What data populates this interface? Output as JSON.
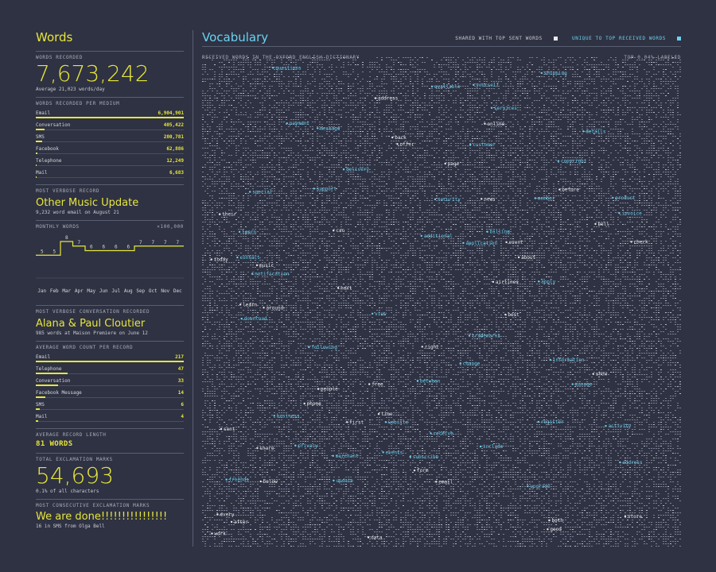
{
  "words": {
    "title": "Words",
    "recorded_label": "WORDS RECORDED",
    "recorded_value": "7,673,242",
    "recorded_sub": "Average 21,023 words/day",
    "per_medium_label": "WORDS RECORDED PER MEDIUM",
    "per_medium": [
      {
        "name": "Email",
        "value": "6,904,901",
        "fraction": 1.0
      },
      {
        "name": "Conversation",
        "value": "405,422",
        "fraction": 0.059
      },
      {
        "name": "SMS",
        "value": "280,781",
        "fraction": 0.041
      },
      {
        "name": "Facebook",
        "value": "62,886",
        "fraction": 0.009
      },
      {
        "name": "Telephone",
        "value": "12,249",
        "fraction": 0.002
      },
      {
        "name": "Mail",
        "value": "6,683",
        "fraction": 0.001
      }
    ],
    "verbose_label": "MOST VERBOSE RECORD",
    "verbose_title": "Other Music Update",
    "verbose_sub": "9,232 word email on August 21",
    "monthly_label": "MONTHLY WORDS",
    "monthly_unit": "×100,000",
    "verbose_conv_label": "MOST VERBOSE CONVERSATION RECORDED",
    "verbose_conv_title": "Alana & Paul Cloutier",
    "verbose_conv_sub": "985 words at Maison Premiere on June 12",
    "avg_count_label": "AVERAGE WORD COUNT PER RECORD",
    "avg_count": [
      {
        "name": "Email",
        "value": "217",
        "fraction": 1.0
      },
      {
        "name": "Telephone",
        "value": "47",
        "fraction": 0.217
      },
      {
        "name": "Conversation",
        "value": "33",
        "fraction": 0.152
      },
      {
        "name": "Facebook Message",
        "value": "14",
        "fraction": 0.065
      },
      {
        "name": "SMS",
        "value": "6",
        "fraction": 0.028
      },
      {
        "name": "Mail",
        "value": "4",
        "fraction": 0.018
      }
    ],
    "avg_length_label": "AVERAGE RECORD LENGTH",
    "avg_length_value": "81 WORDS",
    "exclaim_label": "TOTAL EXCLAMATION MARKS",
    "exclaim_value": "54,693",
    "exclaim_sub": "0.1% of all characters",
    "consec_label": "MOST CONSECUTIVE EXCLAMATION MARKS",
    "consec_value": "We are done!!!!!!!!!!!!!!!!",
    "consec_sub": "16 in SMS from Olga Bell"
  },
  "chart_data": {
    "type": "line",
    "categories": [
      "Jan",
      "Feb",
      "Mar",
      "Apr",
      "May",
      "Jun",
      "Jul",
      "Aug",
      "Sep",
      "Oct",
      "Nov",
      "Dec"
    ],
    "values": [
      5,
      5,
      8,
      7,
      6,
      6,
      6,
      6,
      7,
      7,
      7,
      7
    ],
    "title": "MONTHLY WORDS",
    "ylabel": "×100,000",
    "color": "#e6e63c"
  },
  "vocabulary": {
    "title": "Vocabulary",
    "legend_shared": "SHARED WITH TOP SENT WORDS",
    "legend_unique": "UNIQUE TO TOP RECEIVED WORDS",
    "shared_color": "#e8e9ee",
    "unique_color": "#6ad2f2",
    "grid_label": "RECEIVED WORDS IN THE OXFORD ENGLISH DICTIONARY",
    "labeled_note": "TOP 0.04% LABELED",
    "words_white": [
      "after",
      "airlines",
      "learn",
      "around",
      "bell",
      "before",
      "below",
      "check",
      "can",
      "show",
      "time",
      "form",
      "data",
      "share",
      "both",
      "free",
      "next",
      "page",
      "good",
      "email",
      "work",
      "right",
      "people",
      "offer",
      "phone",
      "address",
      "every",
      "best",
      "sent",
      "news",
      "music",
      "event",
      "online",
      "about",
      "their",
      "today",
      "store",
      "back",
      "first"
    ],
    "words_cyan": [
      "additional",
      "address",
      "activity",
      "application",
      "available",
      "apply",
      "between",
      "billing",
      "business",
      "change",
      "contact",
      "copyright",
      "customer",
      "delivery",
      "details",
      "download",
      "events",
      "following",
      "friends",
      "information",
      "include",
      "invoice",
      "learn",
      "manage",
      "member",
      "merchant",
      "message",
      "notification",
      "payment",
      "privacy",
      "product",
      "questions",
      "receive",
      "register",
      "security",
      "services",
      "shipping",
      "special",
      "subscribe",
      "support",
      "trademarks",
      "update",
      "upgrade",
      "website",
      "view",
      "yourself"
    ]
  }
}
